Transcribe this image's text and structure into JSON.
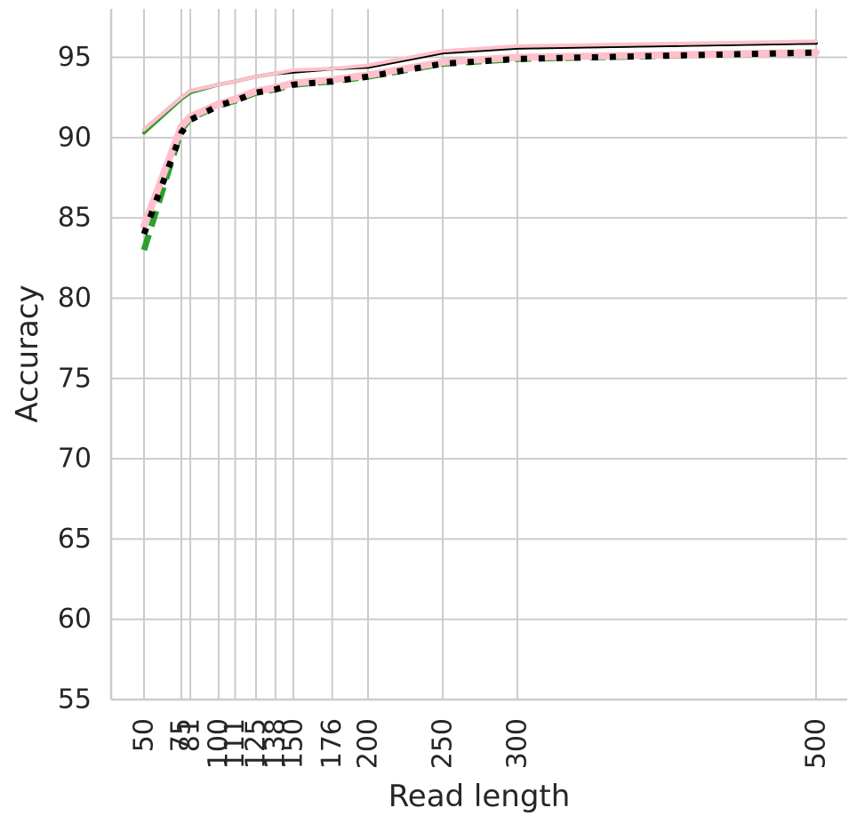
{
  "chart_data": {
    "type": "line",
    "title": "",
    "xlabel": "Read length",
    "ylabel": "Accuracy",
    "xlim": [
      50,
      500
    ],
    "ylim": [
      55,
      97
    ],
    "grid": true,
    "x_ticks": [
      50,
      75,
      81,
      100,
      111,
      125,
      138,
      150,
      176,
      200,
      250,
      300,
      500
    ],
    "x_tick_labels": [
      "50",
      "75",
      "81",
      "100",
      "111",
      "125",
      "138",
      "150",
      "176",
      "200",
      "250",
      "300",
      "500"
    ],
    "y_ticks": [
      55,
      60,
      65,
      70,
      75,
      80,
      85,
      90,
      95
    ],
    "y_tick_labels": [
      "55",
      "60",
      "65",
      "70",
      "75",
      "80",
      "85",
      "90",
      "95"
    ],
    "x": [
      50,
      75,
      81,
      100,
      111,
      125,
      138,
      150,
      176,
      200,
      250,
      300,
      500
    ],
    "series": [
      {
        "color": "#2ca02c",
        "style": "solid",
        "values": [
          90.3,
          92.4,
          92.8,
          93.3,
          93.5,
          93.8,
          94.0,
          94.1,
          94.3,
          94.4,
          95.3,
          95.6,
          95.9
        ]
      },
      {
        "color": "#000000",
        "style": "solid",
        "values": [
          90.5,
          92.5,
          92.9,
          93.3,
          93.5,
          93.8,
          94.0,
          94.1,
          94.3,
          94.4,
          95.3,
          95.6,
          95.9
        ]
      },
      {
        "color": "#ffc0cb",
        "style": "solid",
        "values": [
          90.5,
          92.5,
          92.9,
          93.3,
          93.5,
          93.8,
          94.0,
          94.2,
          94.3,
          94.5,
          95.4,
          95.7,
          96.0
        ]
      },
      {
        "color": "#2ca02c",
        "style": "dashed",
        "values": [
          83.0,
          90.5,
          91.2,
          92.0,
          92.3,
          92.8,
          93.0,
          93.3,
          93.5,
          93.8,
          94.6,
          94.9,
          95.3
        ]
      },
      {
        "color": "#ffc0cb",
        "style": "solid-wide",
        "values": [
          84.5,
          90.7,
          91.3,
          92.1,
          92.4,
          92.9,
          93.1,
          93.4,
          93.6,
          93.9,
          94.7,
          95.0,
          95.3
        ]
      },
      {
        "color": "#000000",
        "style": "dotted",
        "values": [
          84.0,
          90.3,
          91.1,
          92.0,
          92.3,
          92.8,
          93.0,
          93.3,
          93.5,
          93.8,
          94.6,
          94.9,
          95.3
        ]
      }
    ]
  }
}
